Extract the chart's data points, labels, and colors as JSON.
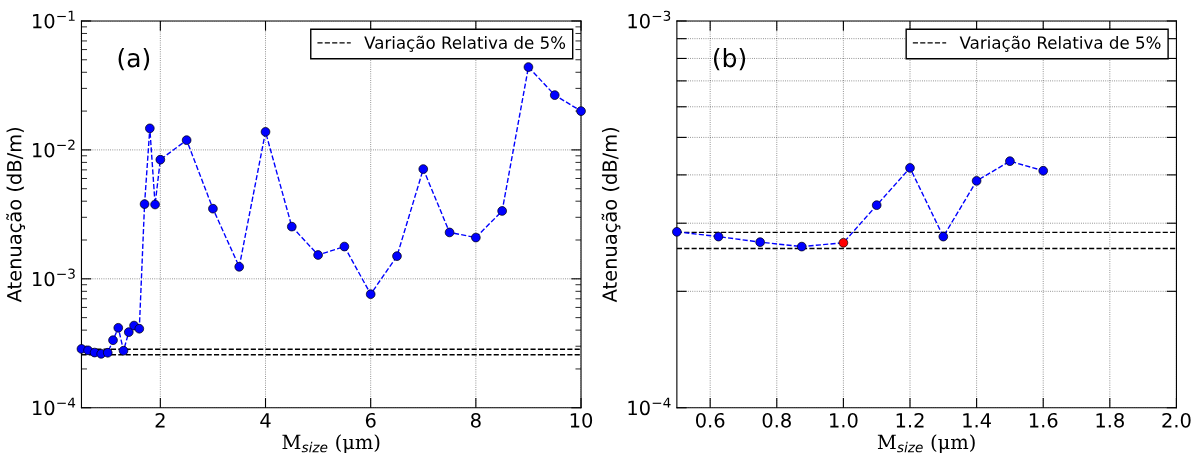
{
  "chart_data": [
    {
      "type": "line",
      "xlabel": "M$_{size}$ (μm)",
      "ylabel": "Atenuação (dB/m)",
      "annotations": [
        "(a)"
      ],
      "log": "y",
      "grid": true,
      "legend": "top right",
      "marker": "circle",
      "line_style": "dashed",
      "xlim": [
        0.5,
        10
      ],
      "xticks": [
        2,
        4,
        6,
        8,
        10
      ],
      "ylim": [
        0.0001,
        0.1
      ],
      "yticks": [
        {
          "value": 0.0001,
          "label": "10$^{−4}$"
        },
        {
          "value": 0.001,
          "label": "10$^{−3}$"
        },
        {
          "value": 0.01,
          "label": "10$^{−2}$"
        },
        {
          "value": 0.1,
          "label": "10$^{−1}$"
        }
      ],
      "x": [
        0.5,
        0.625,
        0.75,
        0.875,
        1.0,
        1.1,
        1.2,
        1.3,
        1.4,
        1.5,
        1.6,
        1.7,
        1.8,
        1.9,
        2.0,
        2.5,
        3.0,
        3.5,
        4.0,
        4.5,
        5.0,
        5.5,
        6.0,
        6.5,
        7.0,
        7.5,
        8.0,
        8.5,
        9.0,
        9.5,
        10.0
      ],
      "series": [
        {
          "color": "#0000ff",
          "values": [
            0.000286,
            0.000279,
            0.000268,
            0.000262,
            0.000267,
            0.000334,
            0.000417,
            0.000277,
            0.000386,
            0.000434,
            0.00041,
            0.0038,
            0.0147,
            0.00377,
            0.0084,
            0.0119,
            0.0035,
            0.00124,
            0.0138,
            0.00254,
            0.00153,
            0.00178,
            0.00076,
            0.0015,
            0.0071,
            0.00229,
            0.00209,
            0.00336,
            0.0439,
            0.0266,
            0.02
          ]
        }
      ],
      "ref_lines": [
        {
          "axis": "y",
          "value": 0.000284,
          "label": "Variação Relativa de 5%",
          "color": "#000000",
          "line_style": "dashed"
        },
        {
          "axis": "y",
          "value": 0.000258,
          "color": "#000000",
          "line_style": "dashed"
        }
      ]
    },
    {
      "type": "line",
      "xlabel": "M$_{size}$ (μm)",
      "ylabel": "Atenuação (dB/m)",
      "annotations": [
        "(b)"
      ],
      "log": "y",
      "grid": true,
      "legend": "top right",
      "marker": "circle",
      "line_style": "dashed",
      "xlim": [
        0.5,
        2.0
      ],
      "xticks": [
        {
          "value": 0.6,
          "label": "0.6"
        },
        {
          "value": 0.8,
          "label": "0.8"
        },
        {
          "value": 1.0,
          "label": "1.0"
        },
        {
          "value": 1.2,
          "label": "1.2"
        },
        {
          "value": 1.4,
          "label": "1.4"
        },
        {
          "value": 1.6,
          "label": "1.6"
        },
        {
          "value": 1.8,
          "label": "1.8"
        },
        {
          "value": 2.0,
          "label": "2.0"
        }
      ],
      "ylim": [
        0.0001,
        0.001
      ],
      "yticks": [
        {
          "value": 0.0001,
          "label": "10$^{−4}$"
        },
        {
          "value": 0.0002,
          "label": null
        },
        {
          "value": 0.0003,
          "label": null
        },
        {
          "value": 0.0004,
          "label": null
        },
        {
          "value": 0.0005,
          "label": null
        },
        {
          "value": 0.0006,
          "label": null
        },
        {
          "value": 0.0007,
          "label": null
        },
        {
          "value": 0.0008,
          "label": null
        },
        {
          "value": 0.0009,
          "label": null
        },
        {
          "value": 0.001,
          "label": "10$^{−3}$"
        }
      ],
      "x": [
        0.5,
        0.625,
        0.75,
        0.875,
        1.0,
        1.1,
        1.2,
        1.3,
        1.4,
        1.5,
        1.6
      ],
      "series": [
        {
          "color": "#0000ff",
          "colors": [
            "#0000ff",
            "#0000ff",
            "#0000ff",
            "#0000ff",
            "#ff0000",
            "#0000ff",
            "#0000ff",
            "#0000ff",
            "#0000ff",
            "#0000ff",
            "#0000ff"
          ],
          "values": [
            0.000285,
            0.000277,
            0.000268,
            0.000261,
            0.000267,
            0.000334,
            0.000417,
            0.000277,
            0.000386,
            0.000434,
            0.00041
          ]
        }
      ],
      "ref_lines": [
        {
          "axis": "y",
          "value": 0.000284,
          "label": "Variação Relativa de 5%",
          "color": "#000000",
          "line_style": "dashed"
        },
        {
          "axis": "y",
          "value": 0.000258,
          "color": "#000000",
          "line_style": "dashed"
        }
      ]
    }
  ]
}
